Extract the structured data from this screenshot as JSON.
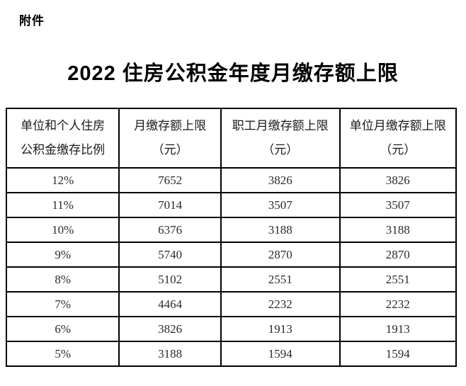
{
  "document": {
    "attachment_label": "附件",
    "title": "2022 住房公积金年度月缴存额上限"
  },
  "table": {
    "headers": [
      {
        "line1": "单位和个人住房",
        "line2": "公积金缴存比例"
      },
      {
        "line1": "月缴存额上限",
        "line2": "（元）"
      },
      {
        "line1": "职工月缴存额上限",
        "line2": "（元）"
      },
      {
        "line1": "单位月缴存额上限",
        "line2": "（元）"
      }
    ],
    "rows": [
      [
        "12%",
        "7652",
        "3826",
        "3826"
      ],
      [
        "11%",
        "7014",
        "3507",
        "3507"
      ],
      [
        "10%",
        "6376",
        "3188",
        "3188"
      ],
      [
        "9%",
        "5740",
        "2870",
        "2870"
      ],
      [
        "8%",
        "5102",
        "2551",
        "2551"
      ],
      [
        "7%",
        "4464",
        "2232",
        "2232"
      ],
      [
        "6%",
        "3826",
        "1913",
        "1913"
      ],
      [
        "5%",
        "3188",
        "1594",
        "1594"
      ]
    ]
  },
  "colors": {
    "text": "#1a1a1a",
    "number_text": "#2b2b2b",
    "border": "#000000",
    "background": "#ffffff"
  }
}
